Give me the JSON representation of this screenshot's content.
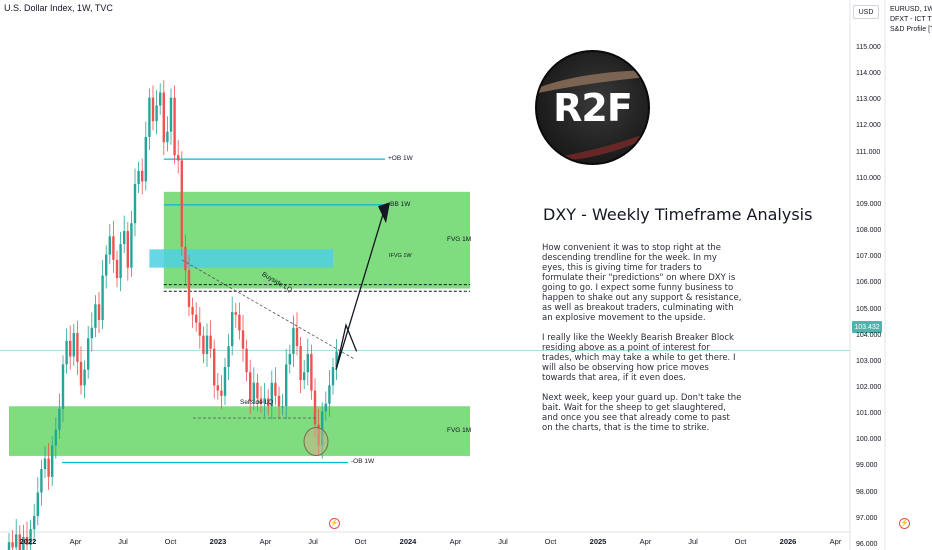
{
  "header": {
    "title": "U.S. Dollar Index, 1W, TVC",
    "currency": "USD"
  },
  "side_panel": {
    "lines": [
      "EURUSD, 1W,",
      "DFXT - ICT TRU",
      "S&D Profile [T"
    ]
  },
  "logo": {
    "text": "R2F"
  },
  "analysis": {
    "title": "DXY - Weekly Timeframe Analysis",
    "paragraphs": [
      "How convenient it was to stop right at the descending trendline for the week. In my eyes, this is giving time for traders to formulate their \"predictions\" on where DXY is going to go. I expect some funny business to happen to shake out any support & resistance, as well as breakout traders, culminating with an explosive movement to the upside.",
      "I really like the Weekly Bearish Breaker Block residing above as a point of interest for trades, which may take a while to get there. I will also be observing how price moves towards that area, if it even does.",
      "Next week, keep your guard up. Don't take the bait. Wait for the sheep to get slaughtered, and once you see that already come to past on the charts, that is the time to strike."
    ]
  },
  "colors": {
    "up": "#26a69a",
    "down": "#ef5350",
    "fvg_zone": "#5fd35f",
    "ifvg_zone": "#4dd0e1",
    "level_line": "#00bcd4",
    "price_line": "#4db6ac"
  },
  "chart_data": {
    "type": "candlestick",
    "title": "U.S. Dollar Index, 1W, TVC",
    "ylim": [
      95.7,
      116.0
    ],
    "y_ticks": [
      "115.000",
      "114.000",
      "113.000",
      "112.000",
      "111.000",
      "110.000",
      "109.000",
      "108.000",
      "107.000",
      "106.000",
      "105.000",
      "104.000",
      "103.000",
      "102.000",
      "101.000",
      "100.000",
      "99.000",
      "98.000",
      "97.000",
      "96.000"
    ],
    "x_ticks": [
      {
        "label": "2022",
        "year": true
      },
      {
        "label": "Apr",
        "year": false
      },
      {
        "label": "Jul",
        "year": false
      },
      {
        "label": "Oct",
        "year": false
      },
      {
        "label": "2023",
        "year": true
      },
      {
        "label": "Apr",
        "year": false
      },
      {
        "label": "Jul",
        "year": false
      },
      {
        "label": "Oct",
        "year": false
      },
      {
        "label": "2024",
        "year": true
      },
      {
        "label": "Apr",
        "year": false
      },
      {
        "label": "Jul",
        "year": false
      },
      {
        "label": "Oct",
        "year": false
      },
      {
        "label": "2025",
        "year": true
      },
      {
        "label": "Apr",
        "year": false
      },
      {
        "label": "Jul",
        "year": false
      },
      {
        "label": "Oct",
        "year": false
      },
      {
        "label": "2026",
        "year": true
      },
      {
        "label": "Apr",
        "year": false
      }
    ],
    "last_price": "103.432",
    "weekly_closes": [
      96.1,
      95.9,
      96.4,
      95.8,
      96.3,
      96.0,
      96.6,
      97.1,
      98.0,
      98.9,
      99.3,
      98.6,
      99.8,
      100.4,
      101.2,
      102.9,
      103.8,
      103.2,
      104.1,
      103.0,
      102.1,
      102.7,
      103.9,
      104.3,
      105.2,
      104.6,
      106.3,
      107.1,
      107.8,
      106.9,
      106.2,
      107.5,
      108.0,
      106.6,
      108.3,
      109.8,
      110.3,
      109.9,
      111.6,
      113.1,
      112.2,
      112.8,
      113.3,
      111.4,
      111.8,
      113.1,
      110.9,
      110.7,
      107.4,
      106.5,
      105.1,
      104.8,
      104.5,
      104.0,
      103.3,
      104.0,
      103.5,
      102.1,
      101.9,
      101.7,
      102.8,
      103.6,
      104.9,
      104.8,
      104.2,
      103.5,
      102.6,
      101.5,
      102.2,
      101.6,
      101.4,
      101.6,
      101.3,
      102.2,
      101.7,
      101.3,
      101.3,
      102.9,
      103.3,
      104.3,
      103.6,
      102.3,
      102.6,
      103.3,
      101.9,
      100.6,
      99.8,
      101.1,
      101.4,
      102.1,
      102.8,
      103.4
    ],
    "zones": [
      {
        "label": "FVG 1M",
        "top": 109.5,
        "bottom": 105.8,
        "from_week": 43,
        "to_edge": true
      },
      {
        "label": "FVG 1M",
        "top": 101.3,
        "bottom": 99.4,
        "from_week": 0,
        "to_edge": true
      },
      {
        "label": "IFVG 1W",
        "top": 107.3,
        "bottom": 106.6,
        "from_week": 39,
        "to_week": 90
      }
    ],
    "levels": [
      {
        "label": "+OB 1W",
        "value": 110.75
      },
      {
        "label": "-BB 1W",
        "value": 109.0
      },
      {
        "label": "-OB 1W",
        "value": 99.15
      }
    ],
    "annotations": [
      {
        "label": "Buyside LQ"
      },
      {
        "label": "Sellside LQ"
      }
    ]
  }
}
